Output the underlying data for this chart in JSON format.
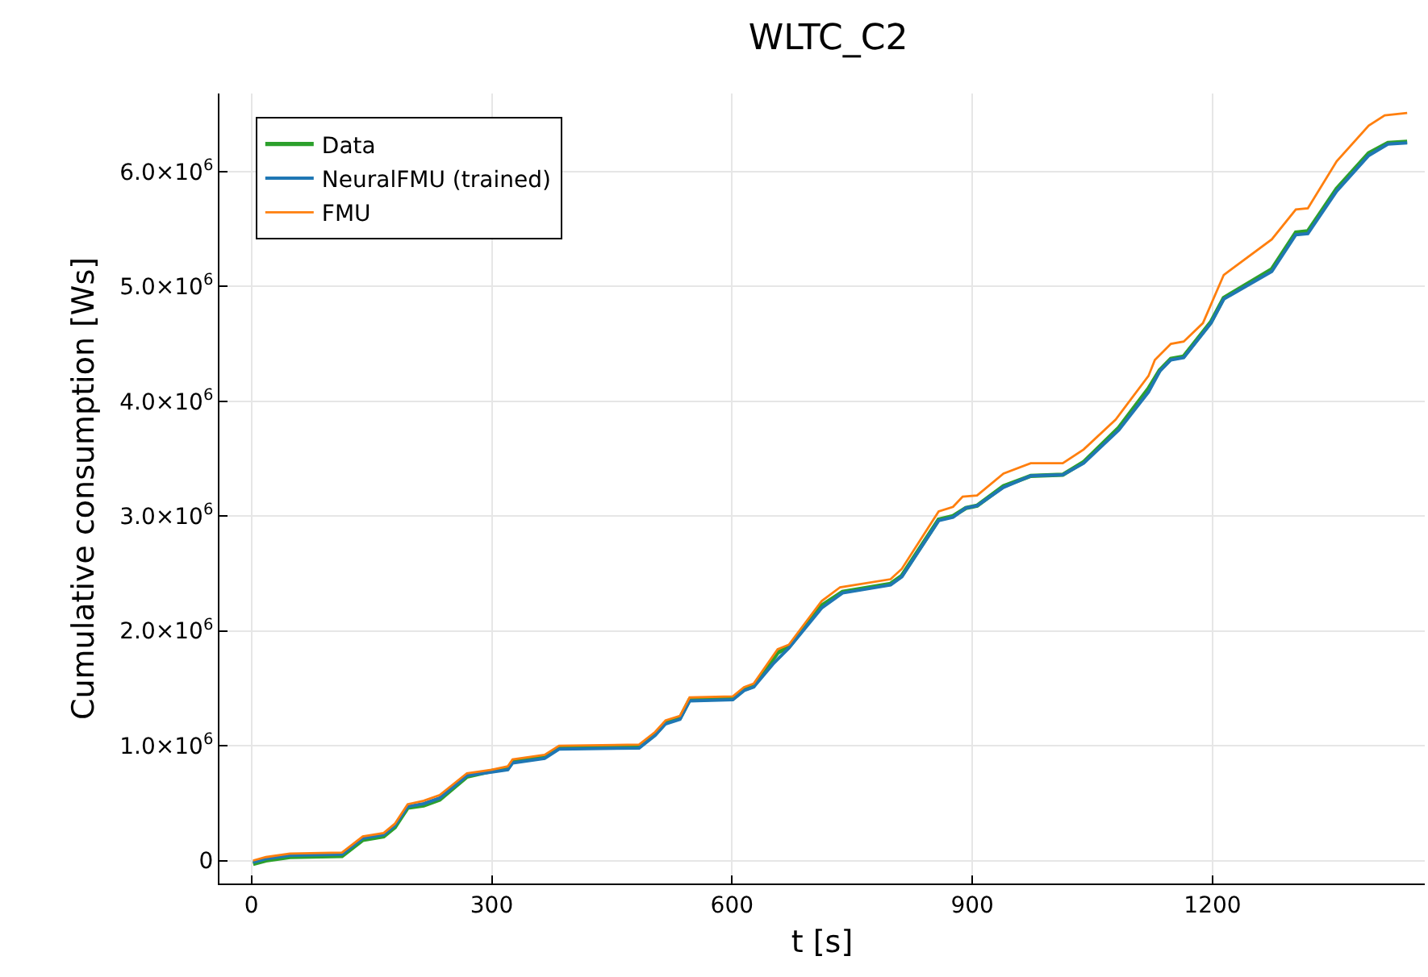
{
  "chart_data": {
    "type": "line",
    "title": "WLTC_C2",
    "xlabel": "t [s]",
    "ylabel": "Cumulative consumption [Ws]",
    "xlim": [
      -40,
      1465
    ],
    "xticks": [
      0,
      300,
      600,
      900,
      1200
    ],
    "ylim": [
      -200000,
      6680000
    ],
    "yticks": [
      0,
      {
        "value": 1000000,
        "label": "1.0×10$^{6}$"
      },
      {
        "value": 2000000,
        "label": "2.0×10$^{6}$"
      },
      {
        "value": 3000000,
        "label": "3.0×10$^{6}$"
      },
      {
        "value": 4000000,
        "label": "4.0×10$^{6}$"
      },
      {
        "value": 5000000,
        "label": "5.0×10$^{6}$"
      },
      {
        "value": 6000000,
        "label": "6.0×10$^{6}$"
      }
    ],
    "grid": true,
    "legend": "top left",
    "marker": "none",
    "line_style": "solid",
    "series": [
      {
        "name": "Data",
        "color": "#2ca02c",
        "x": [
          2,
          18,
          48,
          113,
          139,
          165,
          179,
          195,
          215,
          235,
          269,
          300,
          320,
          326,
          366,
          384,
          484,
          504,
          517,
          535,
          547,
          601,
          615,
          627,
          657,
          671,
          712,
          738,
          798,
          812,
          858,
          876,
          892,
          906,
          939,
          973,
          1013,
          1039,
          1083,
          1120,
          1134,
          1148,
          1164,
          1198,
          1214,
          1274,
          1304,
          1319,
          1355,
          1395,
          1419,
          1443
        ],
        "values": [
          -30000,
          0,
          30000,
          40000,
          180000,
          210000,
          290000,
          460000,
          480000,
          530000,
          730000,
          780000,
          800000,
          860000,
          900000,
          980000,
          990000,
          1100000,
          1200000,
          1240000,
          1400000,
          1410000,
          1490000,
          1520000,
          1810000,
          1860000,
          2220000,
          2340000,
          2410000,
          2480000,
          2970000,
          3000000,
          3070000,
          3090000,
          3260000,
          3350000,
          3360000,
          3470000,
          3770000,
          4110000,
          4270000,
          4370000,
          4390000,
          4690000,
          4900000,
          5150000,
          5470000,
          5480000,
          5850000,
          6160000,
          6250000,
          6260000
        ]
      },
      {
        "name": "NeuralFMU (trained)",
        "color": "#1f77b4",
        "x": [
          2,
          18,
          48,
          113,
          139,
          165,
          179,
          195,
          215,
          235,
          269,
          300,
          320,
          326,
          366,
          384,
          484,
          504,
          517,
          535,
          547,
          601,
          615,
          627,
          651,
          671,
          712,
          738,
          798,
          812,
          858,
          876,
          892,
          906,
          939,
          973,
          1013,
          1039,
          1083,
          1120,
          1134,
          1148,
          1164,
          1198,
          1214,
          1274,
          1304,
          1319,
          1355,
          1395,
          1419,
          1443
        ],
        "values": [
          -15000,
          15000,
          45000,
          55000,
          195000,
          225000,
          305000,
          470000,
          495000,
          545000,
          740000,
          770000,
          790000,
          850000,
          890000,
          970000,
          980000,
          1090000,
          1190000,
          1230000,
          1390000,
          1400000,
          1480000,
          1510000,
          1710000,
          1850000,
          2200000,
          2330000,
          2400000,
          2470000,
          2960000,
          2990000,
          3070000,
          3090000,
          3250000,
          3350000,
          3360000,
          3460000,
          3750000,
          4080000,
          4260000,
          4360000,
          4380000,
          4680000,
          4890000,
          5130000,
          5450000,
          5460000,
          5830000,
          6140000,
          6240000,
          6250000
        ]
      },
      {
        "name": "FMU",
        "color": "#ff7f0e",
        "x": [
          2,
          18,
          48,
          113,
          139,
          165,
          179,
          195,
          215,
          235,
          269,
          300,
          320,
          326,
          366,
          384,
          484,
          504,
          517,
          535,
          547,
          601,
          615,
          627,
          657,
          671,
          712,
          735,
          798,
          812,
          858,
          876,
          888,
          906,
          939,
          973,
          1013,
          1039,
          1079,
          1120,
          1128,
          1148,
          1164,
          1188,
          1214,
          1274,
          1304,
          1319,
          1355,
          1395,
          1415,
          1443
        ],
        "values": [
          0,
          30000,
          60000,
          70000,
          210000,
          240000,
          320000,
          490000,
          520000,
          570000,
          760000,
          790000,
          820000,
          880000,
          920000,
          1000000,
          1010000,
          1120000,
          1220000,
          1260000,
          1420000,
          1430000,
          1510000,
          1540000,
          1840000,
          1880000,
          2260000,
          2380000,
          2450000,
          2540000,
          3040000,
          3080000,
          3170000,
          3180000,
          3370000,
          3460000,
          3460000,
          3580000,
          3840000,
          4220000,
          4360000,
          4500000,
          4520000,
          4680000,
          5100000,
          5410000,
          5670000,
          5680000,
          6090000,
          6400000,
          6490000,
          6510000
        ]
      }
    ]
  }
}
